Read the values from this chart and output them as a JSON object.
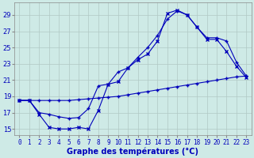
{
  "title": "Graphe des températures (°C)",
  "background_color": "#ceeae6",
  "grid_color": "#b0c8c4",
  "line_color": "#0000bb",
  "y_ticks": [
    15,
    17,
    19,
    21,
    23,
    25,
    27,
    29
  ],
  "ylim": [
    14.2,
    30.5
  ],
  "xlim": [
    -0.5,
    23.5
  ],
  "series": [
    {
      "x": [
        0,
        1,
        2,
        3,
        4,
        5,
        6,
        7,
        8,
        9,
        10,
        11,
        12,
        13,
        14,
        15,
        16,
        17,
        18,
        19,
        20,
        21,
        22,
        23
      ],
      "y": [
        18.5,
        18.5,
        16.8,
        15.2,
        15.0,
        15.0,
        15.2,
        15.0,
        17.3,
        20.5,
        20.8,
        22.5,
        23.5,
        24.2,
        25.8,
        29.2,
        29.6,
        29.0,
        27.5,
        26.0,
        26.0,
        24.5,
        22.7,
        21.3
      ],
      "marker": "x"
    },
    {
      "x": [
        0,
        1,
        2,
        3,
        4,
        5,
        6,
        7,
        8,
        9,
        10,
        11,
        12,
        13,
        14,
        15,
        16,
        17,
        18,
        19,
        20,
        21,
        22,
        23
      ],
      "y": [
        18.5,
        18.5,
        17.0,
        16.8,
        16.5,
        16.3,
        16.4,
        17.5,
        20.3,
        20.5,
        22.0,
        22.5,
        23.8,
        25.0,
        26.5,
        28.5,
        29.5,
        29.0,
        27.5,
        26.2,
        26.2,
        25.8,
        23.2,
        21.5
      ],
      "marker": "+"
    },
    {
      "x": [
        0,
        1,
        2,
        3,
        4,
        5,
        6,
        7,
        8,
        9,
        10,
        11,
        12,
        13,
        14,
        15,
        16,
        17,
        18,
        19,
        20,
        21,
        22,
        23
      ],
      "y": [
        18.5,
        18.5,
        18.5,
        18.5,
        18.5,
        18.5,
        18.6,
        18.7,
        18.8,
        18.9,
        19.0,
        19.2,
        19.4,
        19.6,
        19.8,
        20.0,
        20.2,
        20.4,
        20.6,
        20.8,
        21.0,
        21.2,
        21.4,
        21.5
      ],
      "marker": "+"
    }
  ]
}
